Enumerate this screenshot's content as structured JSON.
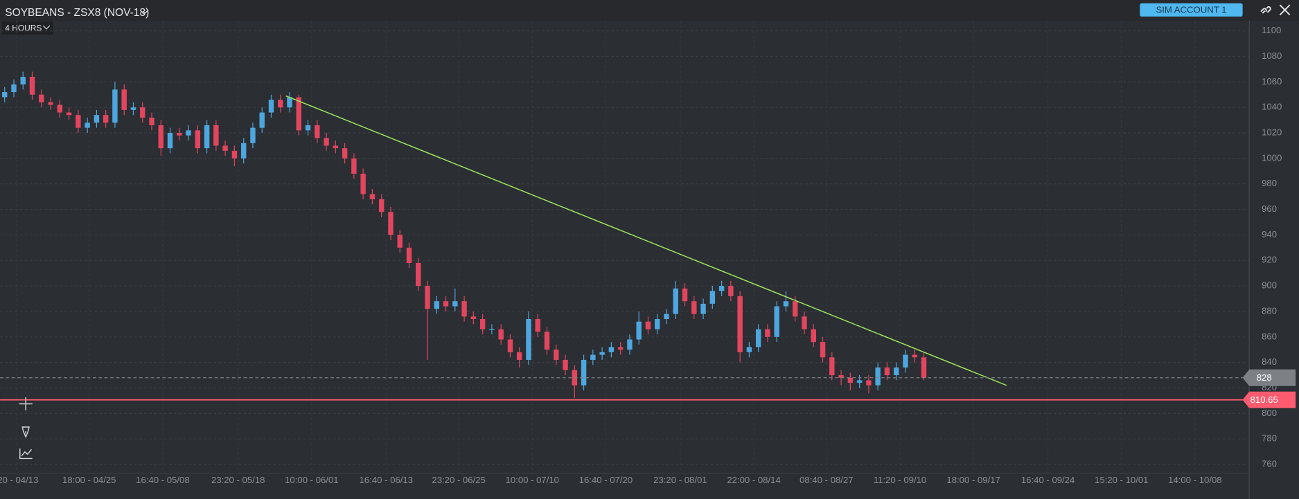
{
  "toolbar": {
    "interval": "4 HOURS",
    "account": "SIM ACCOUNT 1"
  },
  "chart_data": {
    "type": "candlestick",
    "title": "SOYBEANS - ZSX8 (NOV-18)",
    "up_color": "#4ea6de",
    "down_color": "#e2465f",
    "grid": true,
    "open": [
      1048,
      1052,
      1058,
      1064,
      1050,
      1044,
      1042,
      1036,
      1034,
      1024,
      1028,
      1034,
      1028,
      1054,
      1038,
      1040,
      1032,
      1026,
      1008,
      1020,
      1018,
      1022,
      1008,
      1026,
      1010,
      1006,
      1000,
      1012,
      1024,
      1036,
      1046,
      1040,
      1048,
      1022,
      1026,
      1016,
      1010,
      1008,
      1000,
      988,
      972,
      968,
      958,
      940,
      930,
      918,
      900,
      882,
      888,
      884,
      888,
      876,
      874,
      866,
      866,
      858,
      848,
      842,
      874,
      864,
      850,
      842,
      834,
      822,
      842,
      846,
      848,
      852,
      850,
      858,
      872,
      866,
      874,
      878,
      898,
      888,
      878,
      886,
      896,
      900,
      892,
      848,
      852,
      866,
      860,
      884,
      888,
      876,
      866,
      856,
      844,
      830,
      828,
      824,
      826,
      822,
      836,
      830,
      836,
      846,
      844
    ],
    "high": [
      1056,
      1062,
      1068,
      1068,
      1054,
      1048,
      1046,
      1040,
      1038,
      1032,
      1038,
      1038,
      1060,
      1058,
      1044,
      1044,
      1036,
      1030,
      1024,
      1024,
      1026,
      1026,
      1030,
      1030,
      1014,
      1010,
      1016,
      1028,
      1040,
      1050,
      1050,
      1052,
      1050,
      1030,
      1030,
      1020,
      1014,
      1012,
      1004,
      992,
      976,
      972,
      962,
      944,
      934,
      922,
      904,
      892,
      892,
      898,
      892,
      880,
      878,
      870,
      870,
      862,
      852,
      880,
      878,
      868,
      854,
      846,
      838,
      846,
      850,
      852,
      856,
      856,
      862,
      880,
      876,
      878,
      882,
      904,
      902,
      892,
      890,
      900,
      904,
      904,
      896,
      856,
      870,
      870,
      888,
      896,
      892,
      880,
      870,
      860,
      848,
      834,
      832,
      830,
      830,
      840,
      840,
      840,
      850,
      850,
      848
    ],
    "low": [
      1044,
      1048,
      1054,
      1046,
      1040,
      1038,
      1032,
      1030,
      1020,
      1020,
      1024,
      1024,
      1024,
      1034,
      1034,
      1028,
      1022,
      1002,
      1004,
      1014,
      1014,
      1004,
      1004,
      1006,
      1002,
      994,
      996,
      1008,
      1020,
      1032,
      1036,
      1036,
      1018,
      1018,
      1012,
      1006,
      1004,
      996,
      984,
      968,
      964,
      954,
      936,
      926,
      914,
      896,
      842,
      878,
      880,
      880,
      872,
      870,
      862,
      862,
      854,
      844,
      836,
      838,
      860,
      846,
      838,
      830,
      812,
      818,
      838,
      842,
      844,
      846,
      846,
      854,
      862,
      862,
      870,
      874,
      884,
      874,
      874,
      882,
      892,
      888,
      840,
      844,
      848,
      856,
      856,
      880,
      872,
      862,
      852,
      840,
      826,
      822,
      818,
      820,
      816,
      818,
      826,
      826,
      832,
      840,
      826
    ],
    "close": [
      1052,
      1058,
      1064,
      1050,
      1044,
      1042,
      1036,
      1034,
      1024,
      1028,
      1034,
      1028,
      1054,
      1038,
      1040,
      1032,
      1026,
      1008,
      1020,
      1018,
      1022,
      1008,
      1026,
      1010,
      1006,
      1000,
      1012,
      1024,
      1036,
      1046,
      1040,
      1048,
      1022,
      1026,
      1016,
      1010,
      1008,
      1000,
      988,
      972,
      968,
      958,
      940,
      930,
      918,
      900,
      882,
      888,
      884,
      888,
      876,
      874,
      866,
      866,
      858,
      848,
      842,
      874,
      864,
      850,
      842,
      834,
      822,
      842,
      846,
      848,
      852,
      850,
      858,
      872,
      866,
      874,
      878,
      898,
      888,
      878,
      886,
      896,
      900,
      892,
      848,
      852,
      866,
      860,
      884,
      888,
      876,
      866,
      856,
      844,
      830,
      828,
      824,
      826,
      822,
      836,
      830,
      836,
      846,
      844,
      828
    ],
    "xlim": [
      -0.5,
      135.4
    ],
    "ylim": [
      753,
      1108
    ],
    "yticks": [
      760,
      780,
      800,
      820,
      840,
      860,
      880,
      900,
      920,
      940,
      960,
      980,
      1000,
      1020,
      1040,
      1060,
      1080,
      1100
    ],
    "xticks": [
      {
        "value": 1.3,
        "label": ":20 - 04/13"
      },
      {
        "value": 9.2,
        "label": "18:00 - 04/25"
      },
      {
        "value": 17.2,
        "label": "16:40 - 05/08"
      },
      {
        "value": 25.4,
        "label": "23:20 - 05/18"
      },
      {
        "value": 33.4,
        "label": "10:00 - 06/01"
      },
      {
        "value": 41.5,
        "label": "16:40 - 06/13"
      },
      {
        "value": 49.4,
        "label": "23:20 - 06/25"
      },
      {
        "value": 57.4,
        "label": "10:00 - 07/10"
      },
      {
        "value": 65.4,
        "label": "16:40 - 07/20"
      },
      {
        "value": 73.5,
        "label": "23:20 - 08/01"
      },
      {
        "value": 81.5,
        "label": "22:00 - 08/14"
      },
      {
        "value": 89.4,
        "label": "08:40 - 08/27"
      },
      {
        "value": 97.4,
        "label": "11:20 - 09/10"
      },
      {
        "value": 105.4,
        "label": "18:00 - 09/17"
      },
      {
        "value": 113.5,
        "label": "16:40 - 09/24"
      },
      {
        "value": 121.5,
        "label": "15:20 - 10/01"
      },
      {
        "value": 129.5,
        "label": "14:00 - 10/08"
      }
    ],
    "trendline": {
      "x": [
        30.6,
        109.0
      ],
      "y": [
        1049,
        822
      ],
      "color": "#9be15d"
    },
    "price_lines": [
      {
        "value": 828,
        "color": "#7d8085",
        "style": "dashed"
      },
      {
        "value": 810.65,
        "color": "#ff5b70",
        "style": "solid"
      }
    ]
  }
}
